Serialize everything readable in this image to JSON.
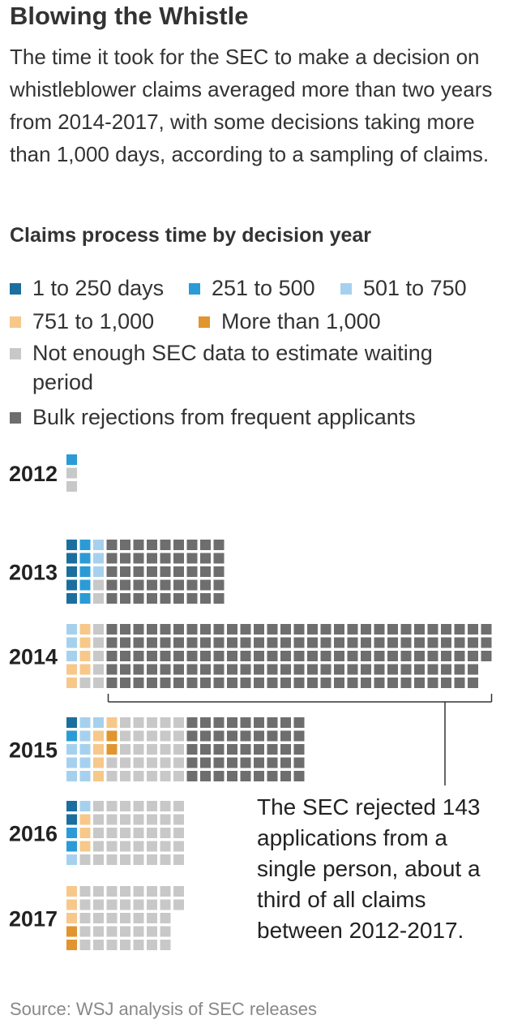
{
  "title": "Blowing the Whistle",
  "subtitle": "The time it took for the SEC to make a decision on whistleblower claims averaged more than two years from 2014-2017, with some decisions taking more than 1,000 days, according to a sampling of claims.",
  "source": "Source: WSJ analysis of SEC releases",
  "annotation": "The SEC rejected 143 applications from a single person, about a third of all claims between 2012-2017.",
  "colors": {
    "c1": "#1b6e9e",
    "c2": "#2a9bd6",
    "c3": "#a6d1ee",
    "c4": "#f7c88a",
    "c5": "#e0952e",
    "c6": "#c8c8c8",
    "c7": "#6e6e6e",
    "bracket": "#333333"
  },
  "chart_data": {
    "type": "waffle",
    "title": "Claims process time by decision year",
    "unit": "claims",
    "categories": [
      {
        "key": "c1",
        "label": "1 to 250 days"
      },
      {
        "key": "c2",
        "label": "251 to 500"
      },
      {
        "key": "c3",
        "label": "501 to 750"
      },
      {
        "key": "c4",
        "label": "751 to 1,000"
      },
      {
        "key": "c5",
        "label": "More than 1,000"
      },
      {
        "key": "c6",
        "label": "Not enough SEC data to estimate waiting period"
      },
      {
        "key": "c7",
        "label": "Bulk rejections from frequent applicants"
      }
    ],
    "years": [
      {
        "year": "2012",
        "counts": {
          "c1": 0,
          "c2": 1,
          "c3": 0,
          "c4": 0,
          "c5": 0,
          "c6": 2,
          "c7": 0
        }
      },
      {
        "year": "2013",
        "counts": {
          "c1": 5,
          "c2": 5,
          "c3": 3,
          "c4": 0,
          "c5": 0,
          "c6": 2,
          "c7": 45
        }
      },
      {
        "year": "2014",
        "counts": {
          "c1": 0,
          "c2": 0,
          "c3": 3,
          "c4": 6,
          "c5": 0,
          "c6": 6,
          "c7": 143
        }
      },
      {
        "year": "2015",
        "counts": {
          "c1": 1,
          "c2": 1,
          "c3": 9,
          "c4": 5,
          "c5": 2,
          "c6": 27,
          "c7": 45
        }
      },
      {
        "year": "2016",
        "counts": {
          "c1": 2,
          "c2": 2,
          "c3": 2,
          "c4": 3,
          "c5": 0,
          "c6": 36,
          "c7": 0
        }
      },
      {
        "year": "2017",
        "counts": {
          "c1": 0,
          "c2": 0,
          "c3": 0,
          "c4": 3,
          "c5": 2,
          "c6": 37,
          "c7": 0
        }
      }
    ],
    "annotation_target": {
      "year": "2014",
      "category": "c7",
      "value": 143
    }
  }
}
